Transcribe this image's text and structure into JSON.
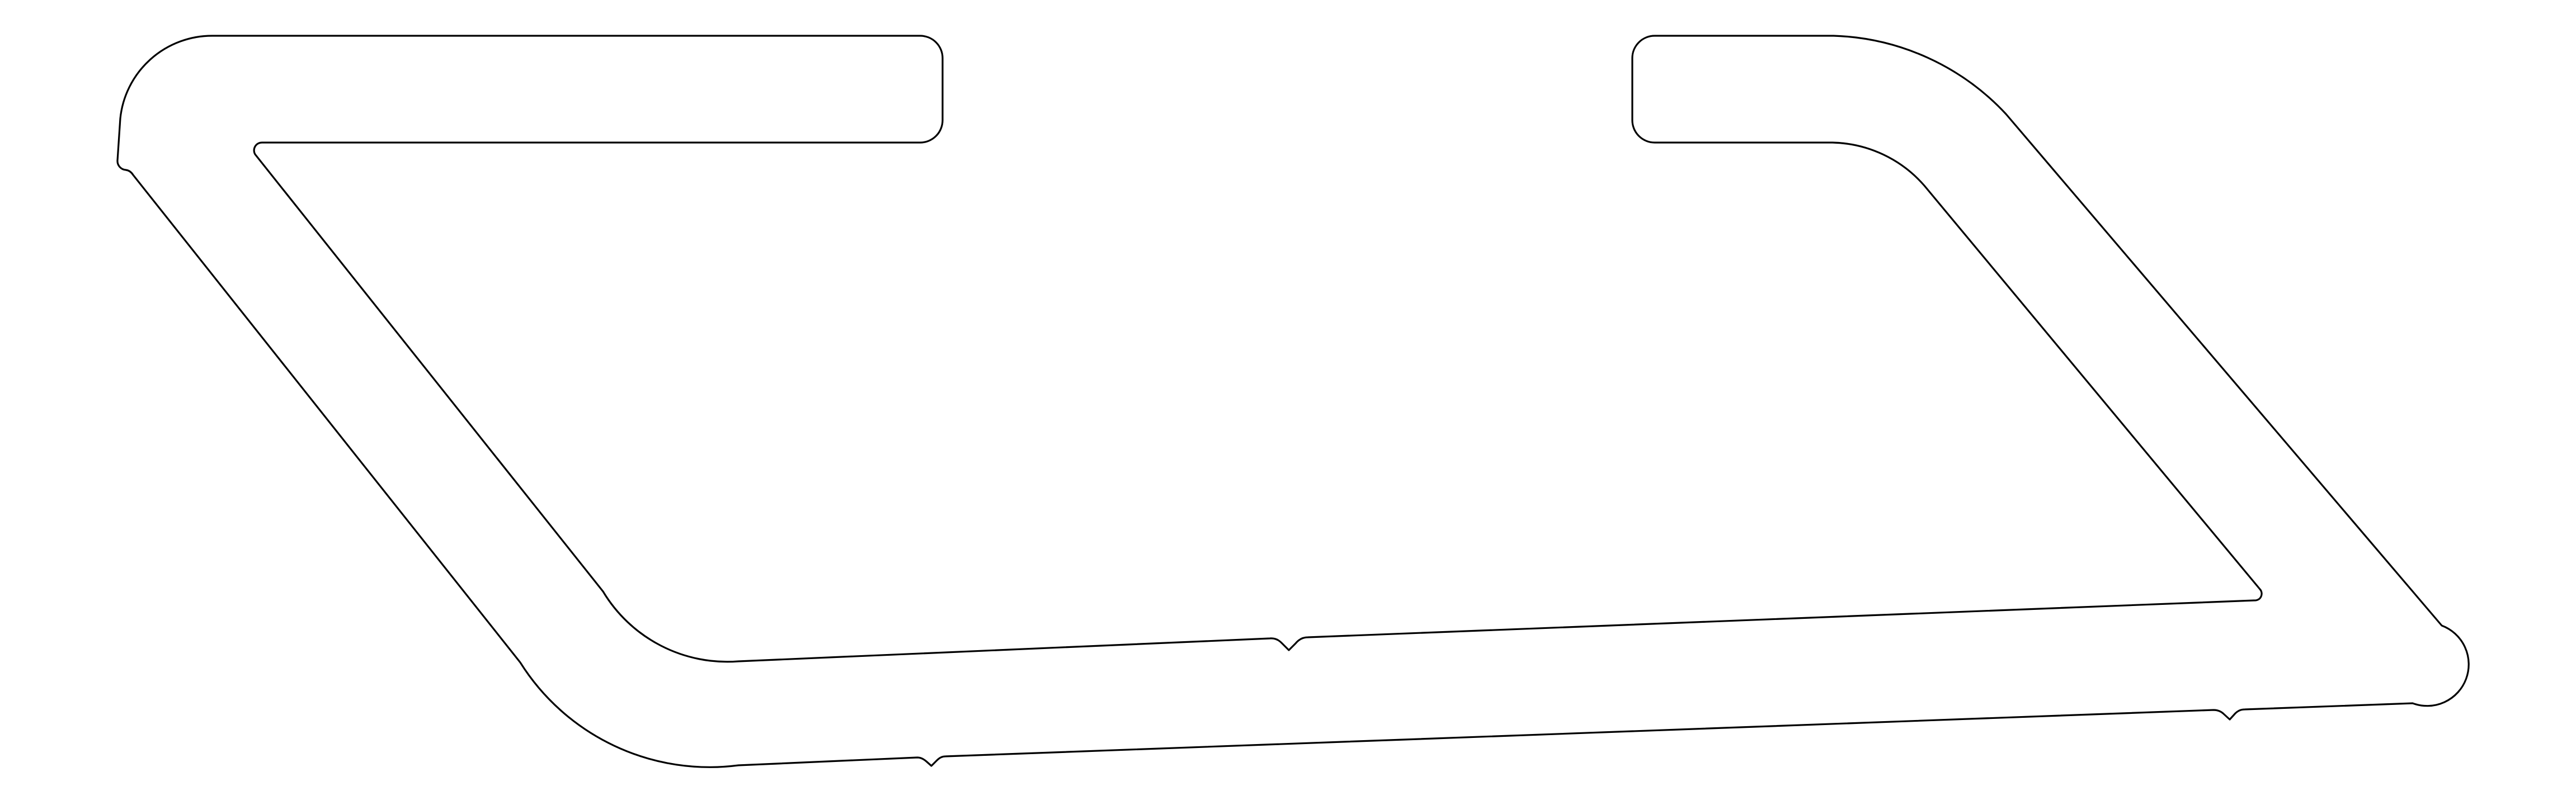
{
  "drawing": {
    "background_color": "#ffffff",
    "stroke_color": "#000000",
    "parts": [
      {
        "name": "outer-frame-outline"
      },
      {
        "name": "inner-frame-outline"
      }
    ]
  }
}
